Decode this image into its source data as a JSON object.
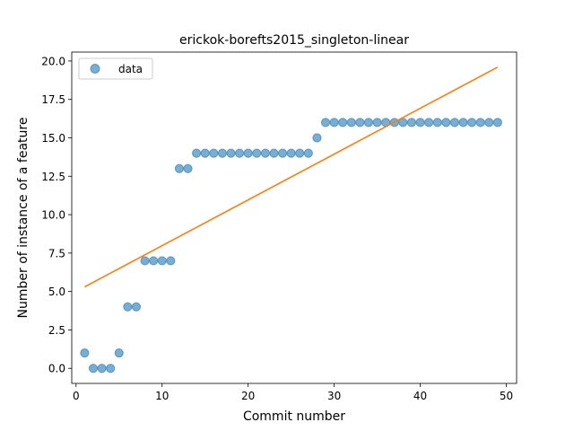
{
  "chart_data": {
    "type": "scatter",
    "title": "erickok-borefts2015_singleton-linear",
    "xlabel": "Commit number",
    "ylabel": "Number of instance of a feature",
    "xlim": [
      -0.5,
      51.2
    ],
    "ylim": [
      -0.98,
      20.58
    ],
    "xticks": [
      0,
      10,
      20,
      30,
      40,
      50
    ],
    "xtick_labels": [
      "0",
      "10",
      "20",
      "30",
      "40",
      "50"
    ],
    "yticks": [
      0,
      2.5,
      5,
      7.5,
      10,
      12.5,
      15,
      17.5,
      20
    ],
    "ytick_labels": [
      "0.0",
      "2.5",
      "5.0",
      "7.5",
      "10.0",
      "12.5",
      "15.0",
      "17.5",
      "20.0"
    ],
    "grid": false,
    "legend": {
      "position": "upper-left",
      "entries": [
        "data"
      ]
    },
    "series": [
      {
        "name": "data",
        "kind": "scatter",
        "color": "#1f77b4",
        "x": [
          1,
          2,
          3,
          4,
          5,
          6,
          7,
          8,
          9,
          10,
          11,
          12,
          13,
          14,
          15,
          16,
          17,
          18,
          19,
          20,
          21,
          22,
          23,
          24,
          25,
          26,
          27,
          28,
          29,
          30,
          31,
          32,
          33,
          34,
          35,
          36,
          37,
          38,
          39,
          40,
          41,
          42,
          43,
          44,
          45,
          46,
          47,
          48,
          49
        ],
        "y": [
          1,
          0,
          0,
          0,
          1,
          4,
          4,
          7,
          7,
          7,
          7,
          13,
          13,
          14,
          14,
          14,
          14,
          14,
          14,
          14,
          14,
          14,
          14,
          14,
          14,
          14,
          14,
          15,
          16,
          16,
          16,
          16,
          16,
          16,
          16,
          16,
          16,
          16,
          16,
          16,
          16,
          16,
          16,
          16,
          16,
          16,
          16,
          16,
          16
        ]
      },
      {
        "kind": "line",
        "color": "#ff7f0e",
        "x": [
          1,
          49
        ],
        "y": [
          5.3,
          19.6
        ]
      }
    ]
  }
}
